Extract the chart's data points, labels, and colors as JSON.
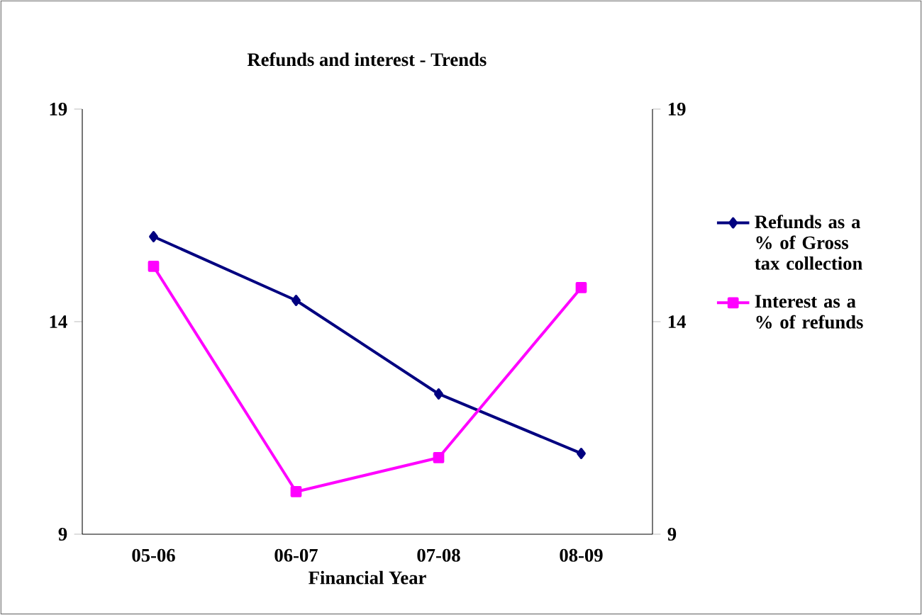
{
  "chart_data": {
    "type": "line",
    "title": "Refunds and interest - Trends",
    "xlabel": "Financial Year",
    "categories": [
      "05-06",
      "06-07",
      "07-08",
      "08-09"
    ],
    "series": [
      {
        "name": "Refunds as a % of Gross tax collection",
        "color": "#000080",
        "marker": "diamond",
        "values": [
          16.0,
          14.5,
          12.3,
          10.9
        ]
      },
      {
        "name": "Interest as a % of refunds",
        "color": "#ff00ff",
        "marker": "square",
        "values": [
          15.3,
          10.0,
          10.8,
          14.8
        ]
      }
    ],
    "ylim": [
      9,
      19
    ],
    "yticks": [
      9,
      14,
      19
    ],
    "y2lim": [
      9,
      19
    ],
    "y2ticks": [
      9,
      14,
      19
    ],
    "grid": false,
    "legend": "right",
    "line_style": "solid"
  }
}
